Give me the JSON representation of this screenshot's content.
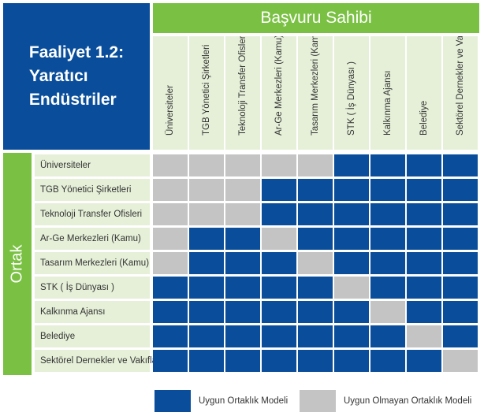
{
  "title": {
    "lines": [
      "Faaliyet 1.2:",
      "Yaratıcı",
      "Endüstriler"
    ]
  },
  "applicant_header": "Başvuru Sahibi",
  "partner_label": "Ortak",
  "columns": [
    "Üniversiteler",
    "TGB Yönetici Şirketleri",
    "Teknoloji Transfer Ofisleri",
    "Ar-Ge Merkezleri (Kamu)",
    "Tasarım Merkezleri (Kamu)",
    "STK ( İş Dünyası )",
    "Kalkınma Ajansı",
    "Belediye",
    "Sektörel Dernekler ve Vakıflar"
  ],
  "rows": [
    "Üniversiteler",
    "TGB Yönetici Şirketleri",
    "Teknoloji Transfer Ofisleri",
    "Ar-Ge Merkezleri (Kamu)",
    "Tasarım Merkezleri (Kamu)",
    "STK ( İş Dünyası )",
    "Kalkınma Ajansı",
    "Belediye",
    "Sektörel Dernekler ve Vakıflar"
  ],
  "matrix": [
    [
      0,
      0,
      0,
      0,
      0,
      1,
      1,
      1,
      1
    ],
    [
      0,
      0,
      0,
      1,
      1,
      1,
      1,
      1,
      1
    ],
    [
      0,
      0,
      0,
      1,
      1,
      1,
      1,
      1,
      1
    ],
    [
      0,
      1,
      1,
      0,
      1,
      1,
      1,
      1,
      1
    ],
    [
      0,
      1,
      1,
      1,
      0,
      1,
      1,
      1,
      1
    ],
    [
      1,
      1,
      1,
      1,
      1,
      0,
      1,
      1,
      1
    ],
    [
      1,
      1,
      1,
      1,
      1,
      1,
      0,
      1,
      1
    ],
    [
      1,
      1,
      1,
      1,
      1,
      1,
      1,
      0,
      1
    ],
    [
      1,
      1,
      1,
      1,
      1,
      1,
      1,
      1,
      0
    ]
  ],
  "colors": {
    "suitable": "#0a4e9b",
    "unsuitable": "#c4c4c4",
    "header_green": "#7ac143",
    "header_light": "#e6f0d8",
    "title_blue": "#0a4e9b"
  },
  "legend": {
    "suitable_label": "Uygun Ortaklık Modeli",
    "unsuitable_label": "Uygun  Olmayan Ortaklık Modeli"
  }
}
